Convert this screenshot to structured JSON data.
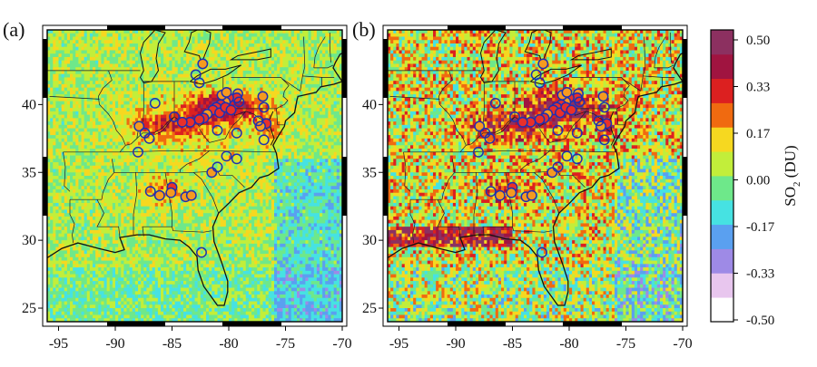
{
  "panels": [
    {
      "label": "(a)"
    },
    {
      "label": "(b)"
    }
  ],
  "map": {
    "x_ticks": [
      "-95",
      "-90",
      "-85",
      "-80",
      "-75",
      "-70"
    ],
    "y_ticks": [
      "25",
      "30",
      "35",
      "40"
    ],
    "lon_range": [
      -96,
      -70
    ],
    "lat_range": [
      24,
      45.5
    ]
  },
  "colorbar": {
    "title_main": "SO",
    "title_sub": "2",
    "title_unit": " (DU)",
    "ticks": [
      "0.50",
      "0.33",
      "0.17",
      "0.00",
      "-0.17",
      "-0.33",
      "-0.50"
    ],
    "colors": [
      "#ffffff",
      "#e8c6ee",
      "#9e8ae6",
      "#5aa0f0",
      "#46e2e2",
      "#6ee88a",
      "#c2ee3a",
      "#f6d820",
      "#f06a10",
      "#dc2020",
      "#a01440",
      "#8c3060"
    ]
  },
  "point_colors": {
    "red": "#e8302a",
    "orange": "#f59a20",
    "yellow": "#e6d838",
    "open": "#2030b0"
  }
}
